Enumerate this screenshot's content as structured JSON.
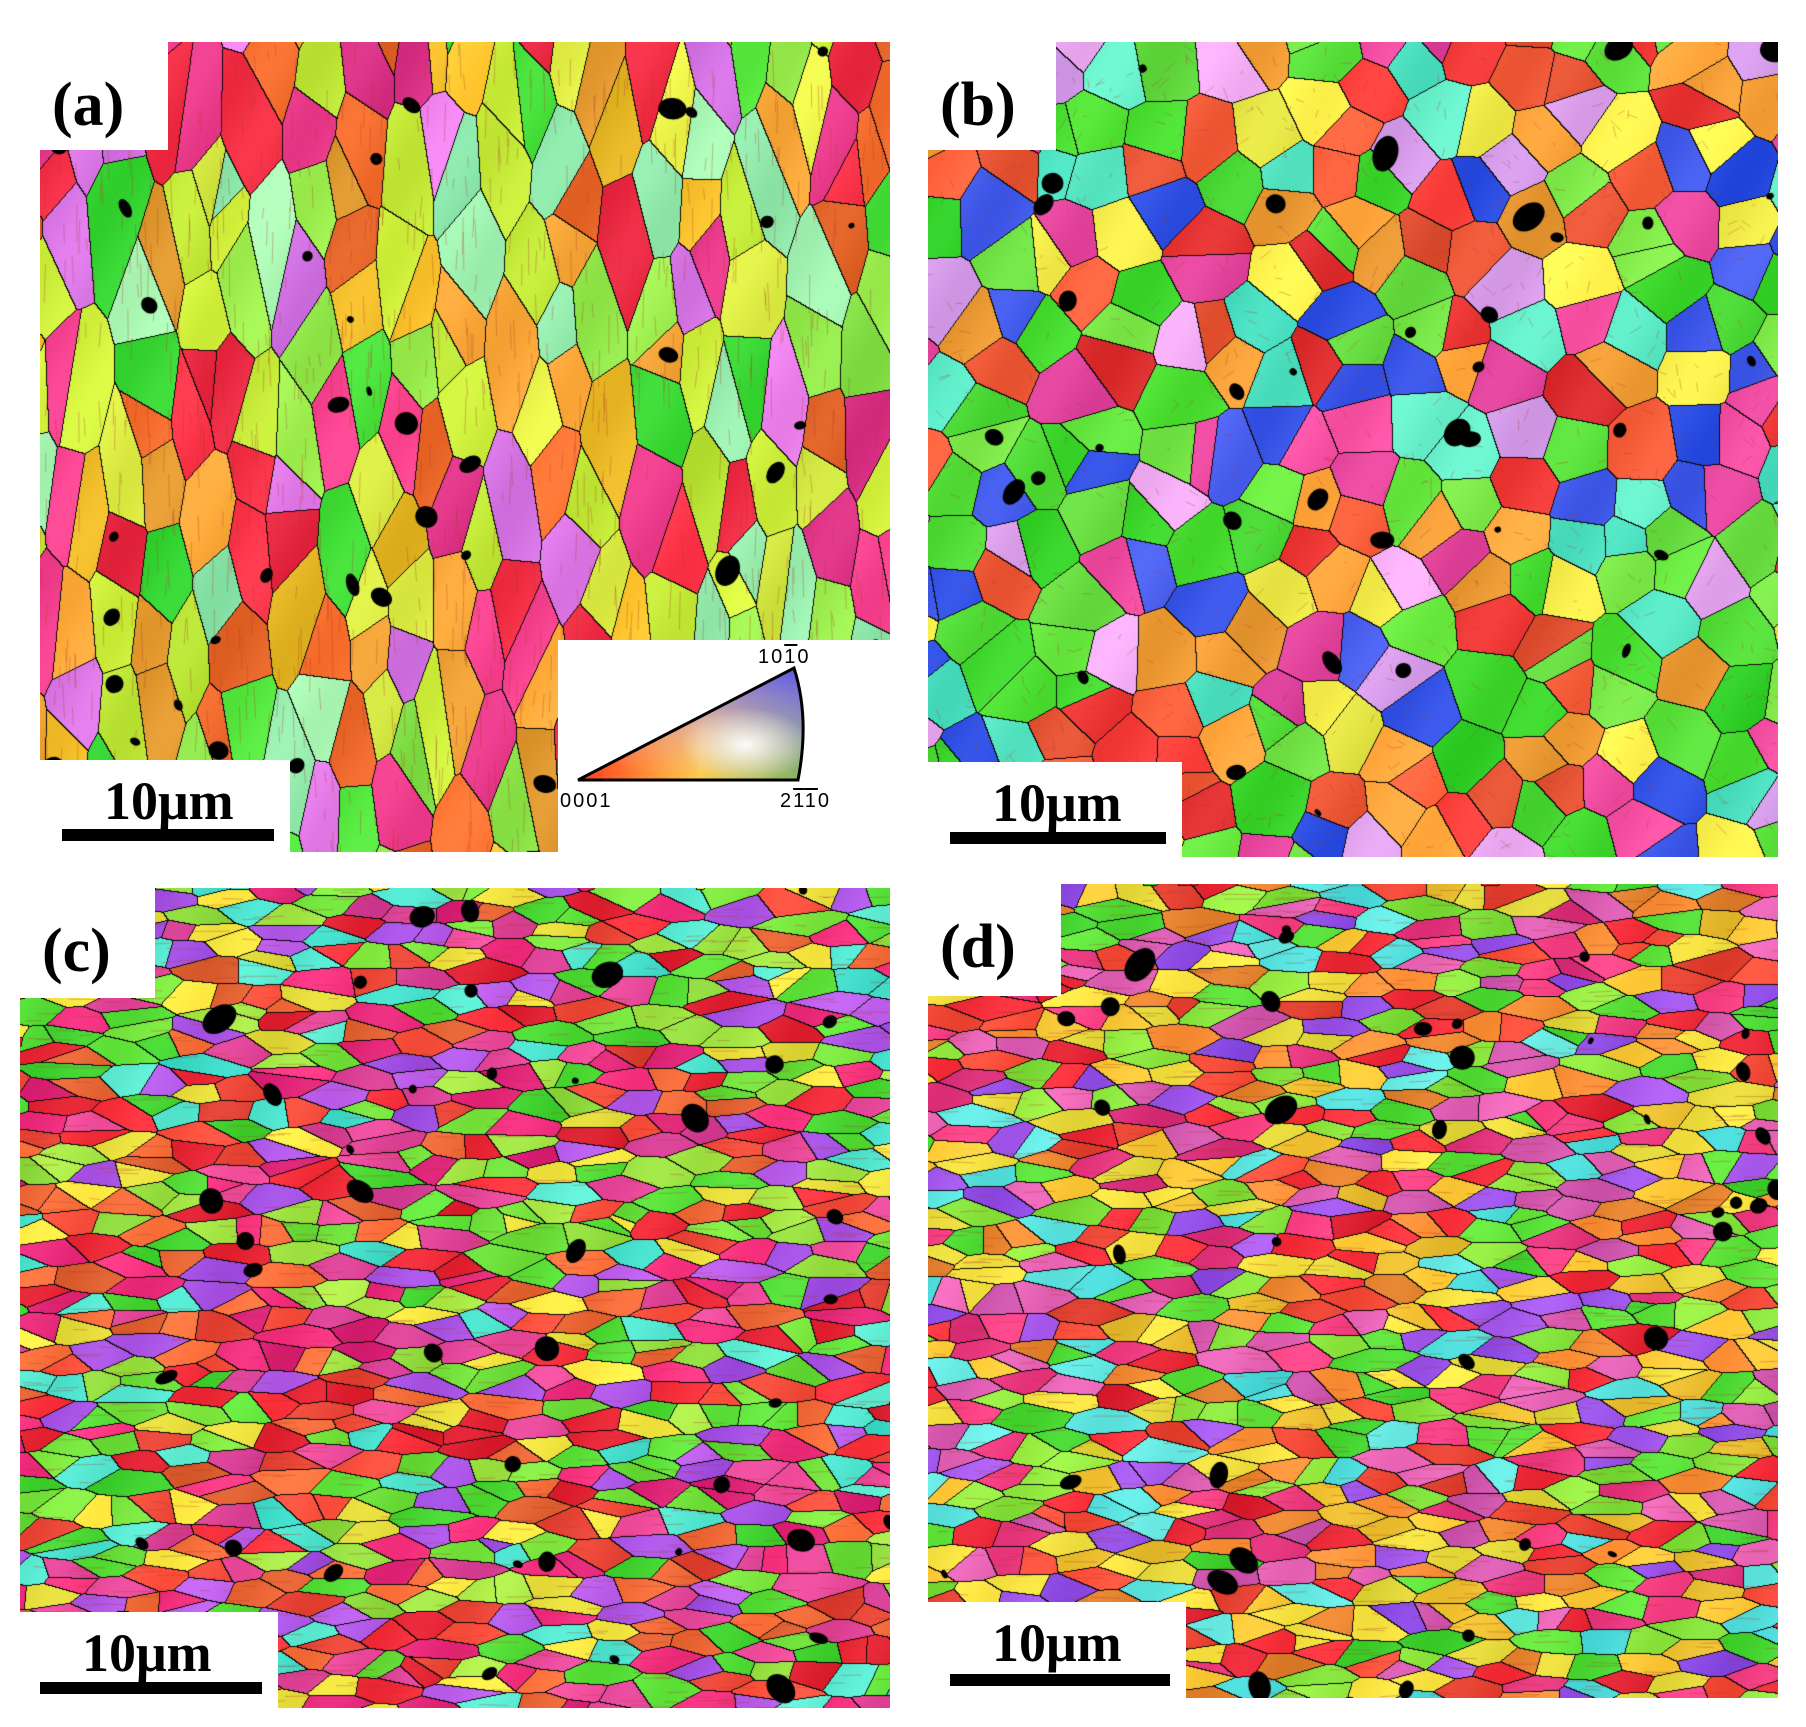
{
  "panels": [
    {
      "id": "a",
      "label": "(a)",
      "scale": "10μm",
      "orientation": "vertical",
      "palette": [
        "#c8ec3a",
        "#e0ee46",
        "#8fe64a",
        "#48e03a",
        "#f6c02c",
        "#f0a236",
        "#ee6a2c",
        "#ee2c44",
        "#ec3c8c",
        "#e07ae8",
        "#9cf0b0"
      ]
    },
    {
      "id": "b",
      "label": "(b)",
      "scale": "10μm",
      "orientation": "equiaxed",
      "palette": [
        "#5ce23c",
        "#74e446",
        "#40d82e",
        "#ee3836",
        "#f05a38",
        "#ec4aa0",
        "#f2ec4a",
        "#f9a23a",
        "#56e6c4",
        "#e6a6f0",
        "#3a56e8"
      ]
    },
    {
      "id": "c",
      "label": "(c)",
      "scale": "10μm",
      "orientation": "horizontal",
      "palette": [
        "#ee2a38",
        "#f04a3a",
        "#f06a38",
        "#ec2c7c",
        "#e6489a",
        "#74e23c",
        "#52dc36",
        "#a0e444",
        "#f2e440",
        "#b058e8",
        "#52e6d0"
      ]
    },
    {
      "id": "d",
      "label": "(d)",
      "scale": "10μm",
      "orientation": "horizontal",
      "palette": [
        "#ee2a38",
        "#f04836",
        "#f28a34",
        "#ec3a80",
        "#e060b4",
        "#f2e040",
        "#f8c636",
        "#8ce63e",
        "#52dc36",
        "#9c54ea",
        "#5ce4e0"
      ]
    }
  ],
  "legend": {
    "top_label": "10",
    "top_overline": "1",
    "top_end": "0",
    "left_label": "0001",
    "right_label_start": "2",
    "right_overline_a": "1",
    "right_overline_b": "1",
    "right_end": "0",
    "colors": {
      "corner_0001": "#ff1a1a",
      "corner_10-10": "#2020ee",
      "corner_2-1-10": "#20d620",
      "center": "#ffffff"
    }
  }
}
